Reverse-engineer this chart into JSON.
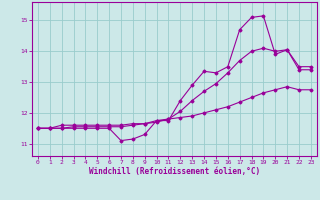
{
  "xlabel": "Windchill (Refroidissement éolien,°C)",
  "xlim": [
    -0.5,
    23.5
  ],
  "ylim": [
    10.6,
    15.6
  ],
  "yticks": [
    11,
    12,
    13,
    14,
    15
  ],
  "xticks": [
    0,
    1,
    2,
    3,
    4,
    5,
    6,
    7,
    8,
    9,
    10,
    11,
    12,
    13,
    14,
    15,
    16,
    17,
    18,
    19,
    20,
    21,
    22,
    23
  ],
  "bg_color": "#cce8e8",
  "line_color": "#990099",
  "grid_color": "#99cccc",
  "series": [
    {
      "x": [
        0,
        1,
        2,
        3,
        4,
        5,
        6,
        7,
        8,
        9,
        10,
        11,
        12,
        13,
        14,
        15,
        16,
        17,
        18,
        19,
        20,
        21,
        22,
        23
      ],
      "y": [
        11.5,
        11.5,
        11.5,
        11.5,
        11.5,
        11.5,
        11.5,
        11.1,
        11.15,
        11.3,
        11.75,
        11.75,
        12.4,
        12.9,
        13.35,
        13.3,
        13.5,
        14.7,
        15.1,
        15.15,
        13.9,
        14.05,
        13.5,
        13.5
      ]
    },
    {
      "x": [
        0,
        1,
        2,
        3,
        4,
        5,
        6,
        7,
        8,
        9,
        10,
        11,
        12,
        13,
        14,
        15,
        16,
        17,
        18,
        19,
        20,
        21,
        22,
        23
      ],
      "y": [
        11.5,
        11.5,
        11.6,
        11.6,
        11.6,
        11.6,
        11.6,
        11.6,
        11.65,
        11.65,
        11.7,
        11.8,
        12.05,
        12.4,
        12.7,
        12.95,
        13.3,
        13.7,
        14.0,
        14.1,
        14.0,
        14.05,
        13.4,
        13.4
      ]
    },
    {
      "x": [
        0,
        1,
        2,
        3,
        4,
        5,
        6,
        7,
        8,
        9,
        10,
        11,
        12,
        13,
        14,
        15,
        16,
        17,
        18,
        19,
        20,
        21,
        22,
        23
      ],
      "y": [
        11.5,
        11.5,
        11.5,
        11.55,
        11.55,
        11.55,
        11.55,
        11.55,
        11.6,
        11.65,
        11.75,
        11.8,
        11.85,
        11.9,
        12.0,
        12.1,
        12.2,
        12.35,
        12.5,
        12.65,
        12.75,
        12.85,
        12.75,
        12.75
      ]
    }
  ]
}
